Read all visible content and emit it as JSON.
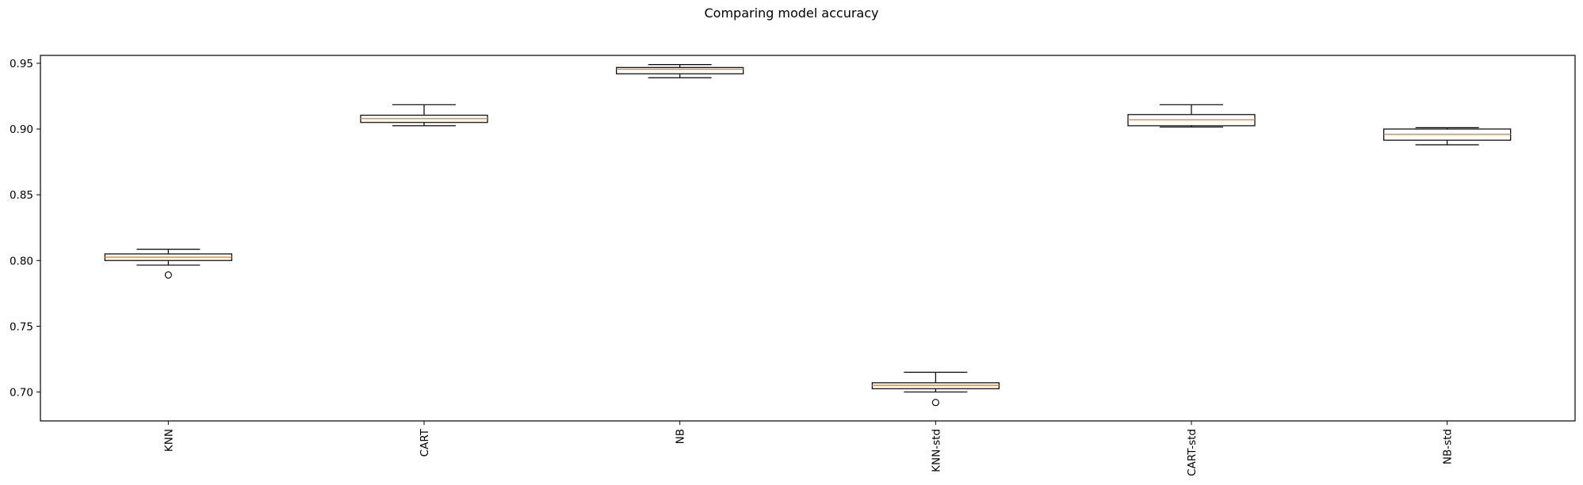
{
  "chart_data": {
    "type": "box",
    "title": "Comparing model accuracy",
    "xlabel": "",
    "ylabel": "",
    "categories": [
      "KNN",
      "CART",
      "NB",
      "KNN-std",
      "CART-std",
      "NB-std"
    ],
    "ylim": [
      0.678,
      0.956
    ],
    "yticks": [
      0.7,
      0.75,
      0.8,
      0.85,
      0.9,
      0.95
    ],
    "ytick_labels": [
      "0.70",
      "0.75",
      "0.80",
      "0.85",
      "0.90",
      "0.95"
    ],
    "grid": false,
    "xtick_rotation": "vertical",
    "boxes": [
      {
        "name": "KNN",
        "whisker_low": 0.7965,
        "q1": 0.8,
        "median": 0.8025,
        "q3": 0.805,
        "whisker_high": 0.8085,
        "outliers": [
          0.789
        ]
      },
      {
        "name": "CART",
        "whisker_low": 0.9025,
        "q1": 0.905,
        "median": 0.908,
        "q3": 0.9105,
        "whisker_high": 0.9185,
        "outliers": []
      },
      {
        "name": "NB",
        "whisker_low": 0.939,
        "q1": 0.942,
        "median": 0.9455,
        "q3": 0.9468,
        "whisker_high": 0.949,
        "outliers": []
      },
      {
        "name": "KNN-std",
        "whisker_low": 0.7,
        "q1": 0.7025,
        "median": 0.705,
        "q3": 0.707,
        "whisker_high": 0.715,
        "outliers": [
          0.692
        ]
      },
      {
        "name": "CART-std",
        "whisker_low": 0.9015,
        "q1": 0.9025,
        "median": 0.907,
        "q3": 0.911,
        "whisker_high": 0.9185,
        "outliers": []
      },
      {
        "name": "NB-std",
        "whisker_low": 0.888,
        "q1": 0.8915,
        "median": 0.896,
        "q3": 0.9,
        "whisker_high": 0.901,
        "outliers": []
      }
    ],
    "colors": {
      "box": "#000000",
      "median": "#ff7f0e",
      "axes": "#000000"
    }
  }
}
